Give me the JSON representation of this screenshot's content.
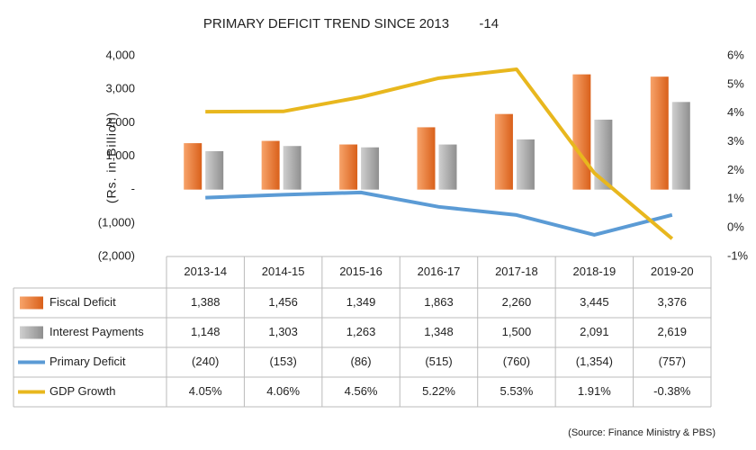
{
  "chart_data": {
    "type": "bar-line-table",
    "title": "PRIMARY DEFICIT TREND SINCE 2013        -14",
    "y_label": "(Rs. in Billion)",
    "source": "(Source: Finance Ministry & PBS)",
    "categories": [
      "2013-14",
      "2014-15",
      "2015-16",
      "2016-17",
      "2017-18",
      "2018-19",
      "2019-20"
    ],
    "ylim": [
      -2000,
      4000
    ],
    "yticks": [
      {
        "value": -2000,
        "label": "(2,000)"
      },
      {
        "value": -1000,
        "label": "(1,000)"
      },
      {
        "value": 0,
        "label": "-"
      },
      {
        "value": 1000,
        "label": "1,000"
      },
      {
        "value": 2000,
        "label": "2,000"
      },
      {
        "value": 3000,
        "label": "3,000"
      },
      {
        "value": 4000,
        "label": "4,000"
      }
    ],
    "y2lim": [
      -1,
      6
    ],
    "y2ticks": [
      {
        "value": -1,
        "label": "-1%"
      },
      {
        "value": 0,
        "label": "0%"
      },
      {
        "value": 1,
        "label": "1%"
      },
      {
        "value": 2,
        "label": "2%"
      },
      {
        "value": 3,
        "label": "3%"
      },
      {
        "value": 4,
        "label": "4%"
      },
      {
        "value": 5,
        "label": "5%"
      },
      {
        "value": 6,
        "label": "6%"
      }
    ],
    "series": [
      {
        "name": "Fiscal Deficit",
        "kind": "bar",
        "color": "#ed7d31",
        "values": [
          1388,
          1456,
          1349,
          1863,
          2260,
          3445,
          3376
        ],
        "value_labels": [
          "1,388",
          "1,456",
          "1,349",
          "1,863",
          "2,260",
          "3,445",
          "3,376"
        ]
      },
      {
        "name": "Interest Payments",
        "kind": "bar",
        "color": "#a5a5a5",
        "values": [
          1148,
          1303,
          1263,
          1348,
          1500,
          2091,
          2619
        ],
        "value_labels": [
          "1,148",
          "1,303",
          "1,263",
          "1,348",
          "1,500",
          "2,091",
          "2,619"
        ]
      },
      {
        "name": "Primary Deficit",
        "kind": "line",
        "color": "#5b9bd5",
        "values": [
          -240,
          -153,
          -86,
          -515,
          -760,
          -1354,
          -757
        ],
        "value_labels": [
          "(240)",
          "(153)",
          "(86)",
          "(515)",
          "(760)",
          "(1,354)",
          "(757)"
        ]
      },
      {
        "name": "GDP Growth",
        "kind": "line",
        "axis": "y2",
        "color": "#e8b71e",
        "values": [
          4.05,
          4.06,
          4.56,
          5.22,
          5.53,
          1.91,
          -0.38
        ],
        "value_labels": [
          "4.05%",
          "4.06%",
          "4.56%",
          "5.22%",
          "5.53%",
          "1.91%",
          "-0.38%"
        ]
      }
    ]
  }
}
